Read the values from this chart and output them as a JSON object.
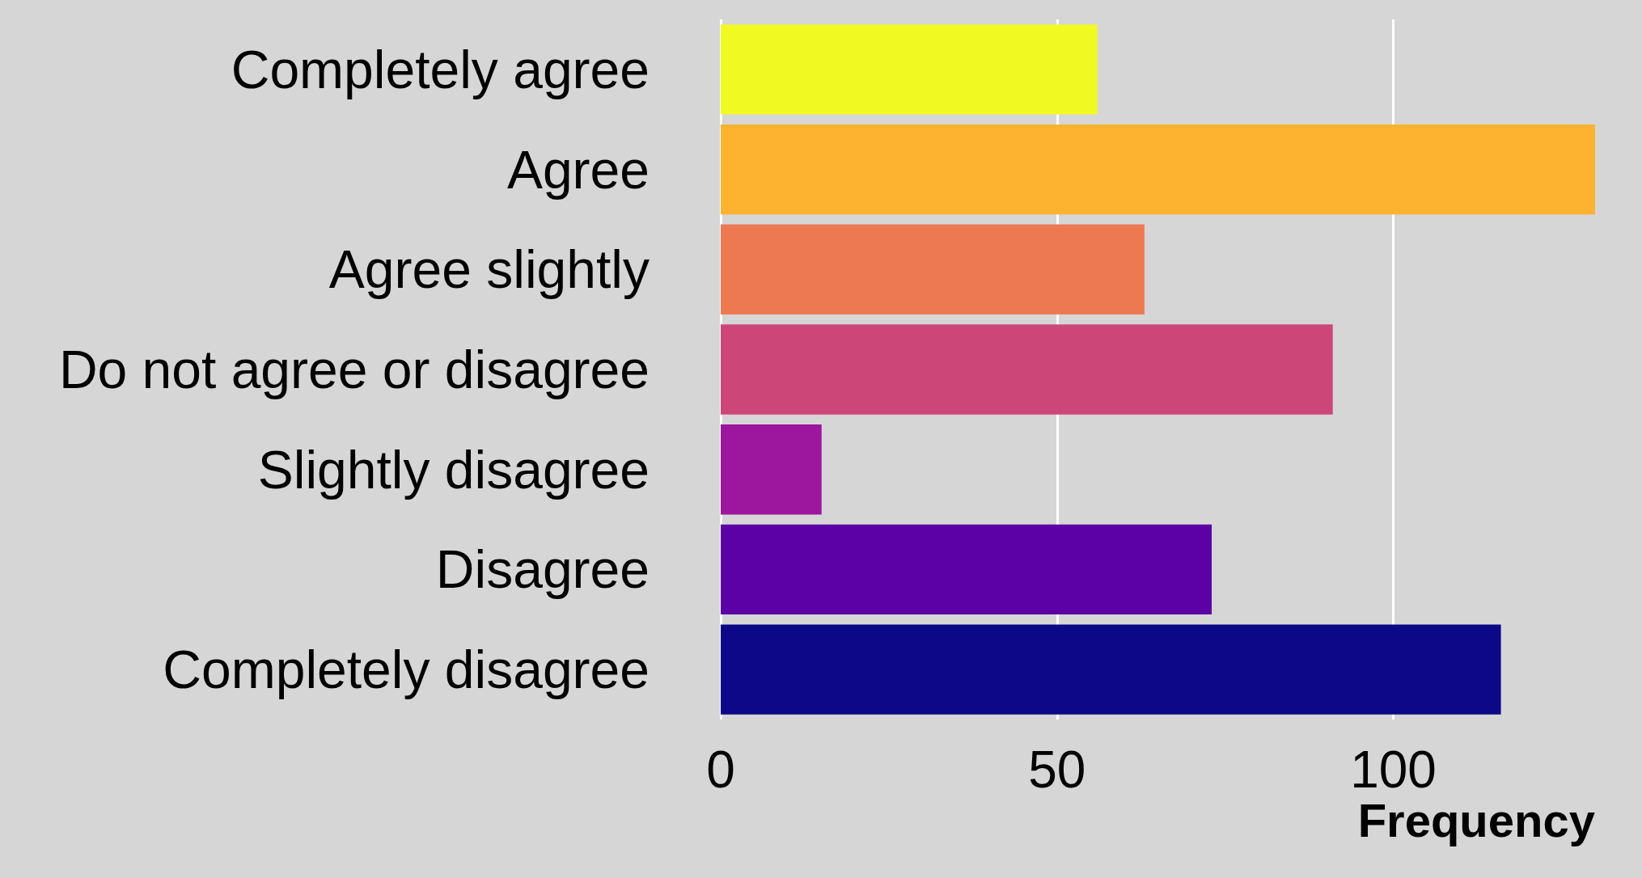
{
  "chart_data": {
    "type": "bar",
    "orientation": "horizontal",
    "xlabel": "Frequency",
    "categories": [
      "Completely agree",
      "Agree",
      "Agree slightly",
      "Do not agree or disagree",
      "Slightly disagree",
      "Disagree",
      "Completely disagree"
    ],
    "values": [
      56,
      130,
      63,
      91,
      15,
      73,
      116
    ],
    "colors": [
      "#f0f921",
      "#fdb32f",
      "#ed7953",
      "#cc4778",
      "#9c179e",
      "#5c01a6",
      "#0d0887"
    ],
    "xlim": [
      0,
      130
    ],
    "xticks": [
      0,
      50,
      100
    ],
    "grid": "x"
  }
}
